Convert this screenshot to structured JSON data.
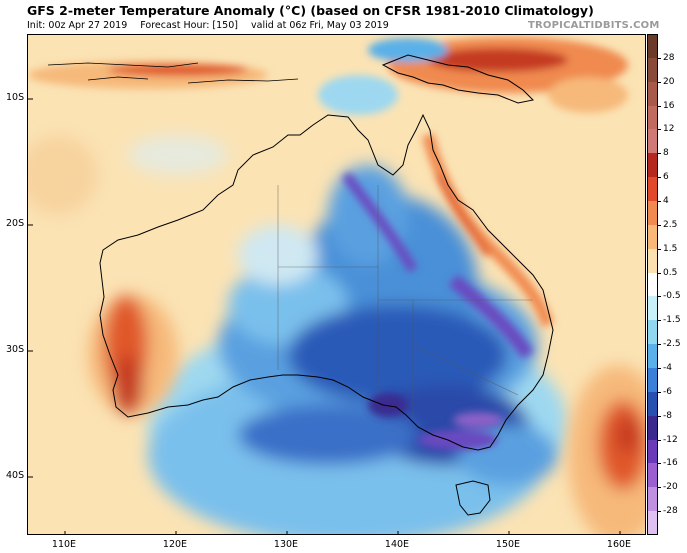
{
  "header": {
    "title": "GFS 2-meter Temperature Anomaly (°C) (based on CFSR 1981-2010 Climatology)",
    "init": "Init: 00z Apr 27 2019",
    "forecast_hour": "Forecast Hour: [150]",
    "valid": "valid at 06z Fri, May 03 2019",
    "brand": "TROPICALTIDBITS.COM"
  },
  "axes": {
    "lat_labels": [
      "10S",
      "20S",
      "30S",
      "40S"
    ],
    "lon_labels": [
      "110E",
      "120E",
      "130E",
      "140E",
      "150E",
      "160E"
    ]
  },
  "colorbar": {
    "labels": [
      "28",
      "20",
      "16",
      "12",
      "8",
      "6",
      "4",
      "2.5",
      "1.5",
      "0.5",
      "-0.5",
      "-1.5",
      "-2.5",
      "-4",
      "-6",
      "-8",
      "-12",
      "-16",
      "-20",
      "-28"
    ],
    "colors": [
      "#6b3a28",
      "#8a4a3a",
      "#a85a4a",
      "#c06a60",
      "#d07a78",
      "#b52820",
      "#e04a2a",
      "#f08a50",
      "#f8b878",
      "#fbe0b0",
      "#ffffff",
      "#c8f0f8",
      "#90d8f0",
      "#5ab0e8",
      "#3a80d8",
      "#2850b0",
      "#3a2a90",
      "#6a3ab8",
      "#9a60d0",
      "#c090e0",
      "#e0c0f0"
    ]
  },
  "colors": {
    "warm_light": "#fbe3b4",
    "warm_mid": "#f6b97a",
    "warm_strong": "#e0582a",
    "cool_light": "#9ed8f0",
    "cool_mid": "#4a90d8",
    "cool_strong": "#2a4aa8",
    "cool_extreme": "#6a48c0"
  }
}
